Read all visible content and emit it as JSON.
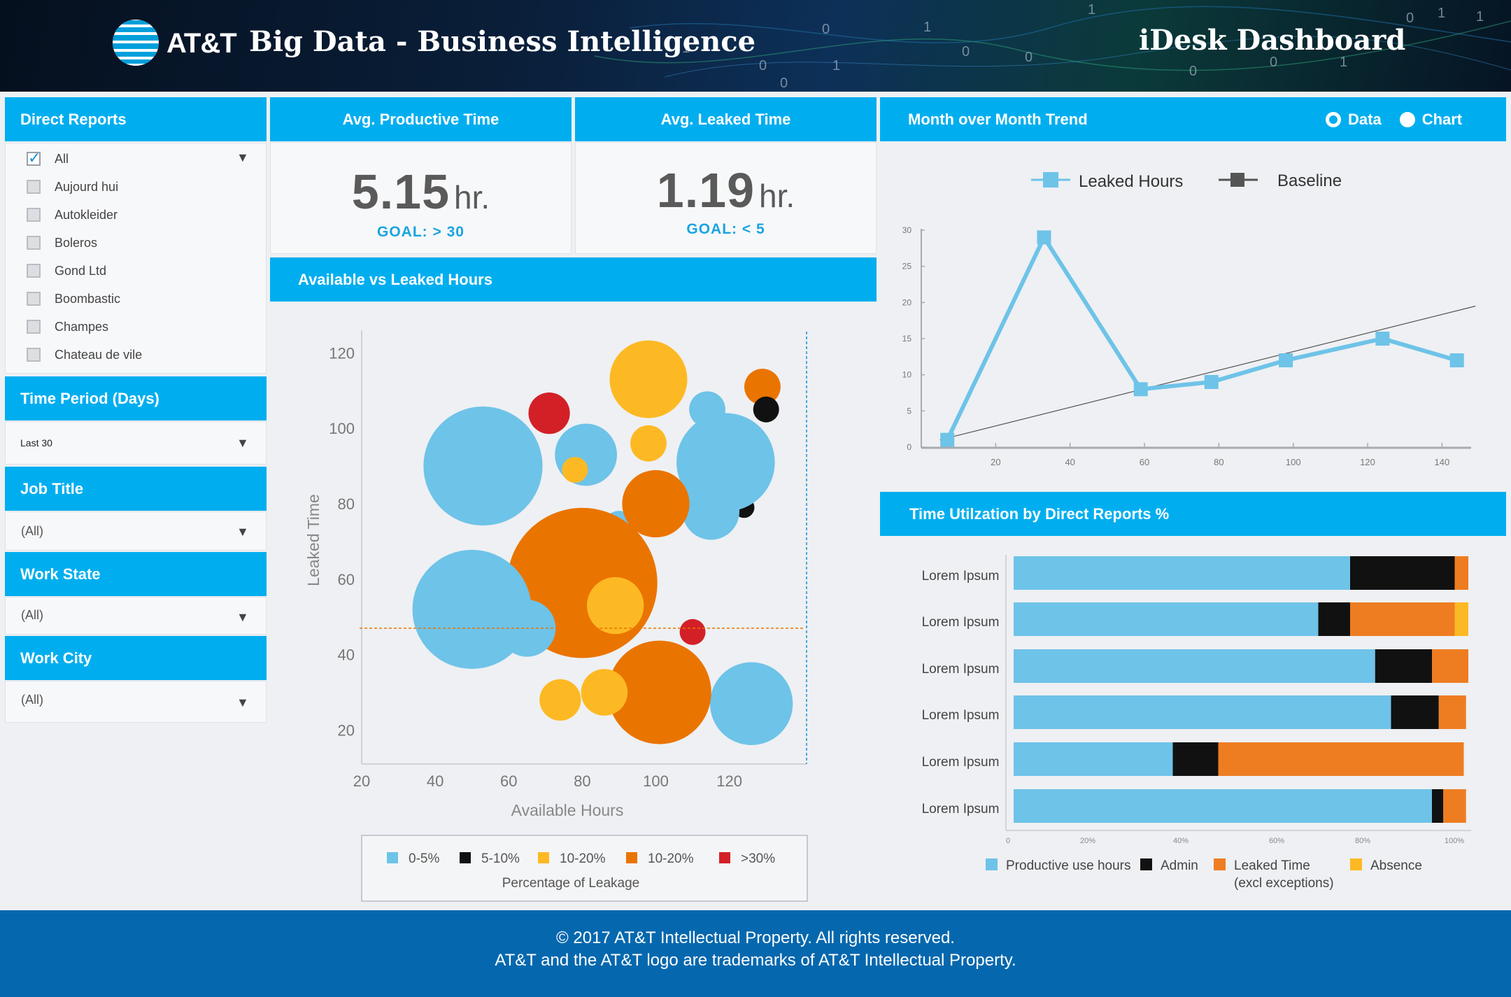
{
  "header": {
    "brand": "AT&T",
    "title": "Big Data - Business Intelligence",
    "dashboard_name": "iDesk Dashboard"
  },
  "direct_reports": {
    "title": "Direct Reports",
    "items": [
      {
        "label": "All",
        "checked": true
      },
      {
        "label": "Aujourd hui",
        "checked": false
      },
      {
        "label": "Autokleider",
        "checked": false
      },
      {
        "label": "Boleros",
        "checked": false
      },
      {
        "label": "Gond Ltd",
        "checked": false
      },
      {
        "label": "Boombastic",
        "checked": false
      },
      {
        "label": "Champes",
        "checked": false
      },
      {
        "label": "Chateau de vile",
        "checked": false
      }
    ]
  },
  "filters": {
    "time_period": {
      "title": "Time Period (Days)",
      "value": "Last 30"
    },
    "job_title": {
      "title": "Job Title",
      "value": "(All)"
    },
    "work_state": {
      "title": "Work State",
      "value": "(All)"
    },
    "work_city": {
      "title": "Work City",
      "value": "(All)"
    }
  },
  "kpis": {
    "productive": {
      "title": "Avg. Productive Time",
      "value": "5.15",
      "unit": "hr.",
      "goal": "GOAL: > 30"
    },
    "leaked": {
      "title": "Avg. Leaked Time",
      "value": "1.19",
      "unit": "hr.",
      "goal": "GOAL: < 5"
    }
  },
  "bubble_panel": {
    "title": "Available vs Leaked Hours"
  },
  "trend_panel": {
    "title": "Month over Month Trend",
    "toggle": {
      "data_label": "Data",
      "chart_label": "Chart",
      "selected": "Chart"
    }
  },
  "util_panel": {
    "title": "Time Utilzation by Direct Reports %"
  },
  "colors": {
    "accent": "#00aeef",
    "light_blue": "#6ec3e8",
    "black": "#111111",
    "yellow": "#fdb924",
    "orange": "#ea7400",
    "bar_orange": "#ee7d22",
    "red": "#d32027",
    "footer": "#0568ae"
  },
  "chart_data": [
    {
      "type": "scatter",
      "xlabel": "Available Hours",
      "ylabel": "Leaked Time",
      "x_ticks": [
        "20",
        "40",
        "60",
        "80",
        "100",
        "120"
      ],
      "y_ticks": [
        "20",
        "40",
        "60",
        "80",
        "100",
        "120"
      ],
      "xlim": [
        20,
        141
      ],
      "ylim": [
        11,
        126
      ],
      "reference_lines": {
        "horizontal_y": 47,
        "vertical_x": 141
      },
      "legend": {
        "title": "Percentage of Leakage",
        "entries": [
          {
            "label": "0-5%",
            "color": "#6ec3e8"
          },
          {
            "label": "5-10%",
            "color": "#111111"
          },
          {
            "label": "10-20%",
            "color": "#fdb924"
          },
          {
            "label": "10-20%",
            "color": "#ea7400"
          },
          {
            "label": ">30%",
            "color": "#d32027"
          }
        ]
      },
      "points": [
        {
          "x": 114,
          "y": 105,
          "size": 7,
          "cat": 0
        },
        {
          "x": 129,
          "y": 111,
          "size": 7,
          "cat": 3
        },
        {
          "x": 130,
          "y": 105,
          "size": 5,
          "cat": 1
        },
        {
          "x": 124,
          "y": 79,
          "size": 4,
          "cat": 1
        },
        {
          "x": 53,
          "y": 90,
          "size": 23,
          "cat": 0
        },
        {
          "x": 71,
          "y": 104,
          "size": 8,
          "cat": 4
        },
        {
          "x": 81,
          "y": 93,
          "size": 12,
          "cat": 0
        },
        {
          "x": 119,
          "y": 91,
          "size": 19,
          "cat": 0
        },
        {
          "x": 98,
          "y": 113,
          "size": 15,
          "cat": 2
        },
        {
          "x": 98,
          "y": 96,
          "size": 7,
          "cat": 2
        },
        {
          "x": 78,
          "y": 89,
          "size": 5,
          "cat": 2
        },
        {
          "x": 90,
          "y": 74,
          "size": 6,
          "cat": 0
        },
        {
          "x": 115,
          "y": 78,
          "size": 11,
          "cat": 0
        },
        {
          "x": 80,
          "y": 59,
          "size": 29,
          "cat": 3
        },
        {
          "x": 100,
          "y": 80,
          "size": 13,
          "cat": 3
        },
        {
          "x": 65,
          "y": 47,
          "size": 11,
          "cat": 0
        },
        {
          "x": 50,
          "y": 52,
          "size": 23,
          "cat": 0
        },
        {
          "x": 89,
          "y": 53,
          "size": 11,
          "cat": 2
        },
        {
          "x": 110,
          "y": 46,
          "size": 5,
          "cat": 4
        },
        {
          "x": 126,
          "y": 27,
          "size": 16,
          "cat": 0
        },
        {
          "x": 101,
          "y": 30,
          "size": 20,
          "cat": 3
        },
        {
          "x": 86,
          "y": 30,
          "size": 9,
          "cat": 2
        },
        {
          "x": 74,
          "y": 28,
          "size": 8,
          "cat": 2
        }
      ]
    },
    {
      "type": "line",
      "x_ticks": [
        "20",
        "40",
        "60",
        "80",
        "100",
        "120",
        "140"
      ],
      "y_ticks": [
        "0",
        "5",
        "10",
        "15",
        "20",
        "25",
        "30"
      ],
      "xlim": [
        0,
        145
      ],
      "ylim": [
        0,
        30
      ],
      "series": [
        {
          "name": "Leaked Hours",
          "color": "#6ec3e8",
          "x": [
            7,
            33,
            59,
            78,
            98,
            124,
            144
          ],
          "values": [
            1,
            29,
            8,
            9,
            12,
            15,
            12
          ]
        },
        {
          "name": "Baseline",
          "color": "#555555",
          "x": [
            5,
            149
          ],
          "values": [
            1,
            19.5
          ]
        }
      ]
    },
    {
      "type": "bar",
      "orientation": "horizontal",
      "stacked": true,
      "categories": [
        "Lorem Ipsum",
        "Lorem Ipsum",
        "Lorem Ipsum",
        "Lorem Ipsum",
        "Lorem Ipsum",
        "Lorem Ipsum"
      ],
      "x_ticks": [
        "0",
        "20%",
        "40%",
        "60%",
        "80%",
        "100%"
      ],
      "xlim": [
        0,
        100
      ],
      "series": [
        {
          "name": "Productive use hours",
          "color": "#6ec3e8",
          "values": [
            74,
            67,
            79.5,
            83,
            35,
            92
          ]
        },
        {
          "name": "Admin",
          "color": "#111111",
          "values": [
            23,
            7,
            12.5,
            10.5,
            10,
            2.5
          ]
        },
        {
          "name": "Leaked Time (excl exceptions)",
          "color": "#ee7d22",
          "values": [
            3,
            23,
            8,
            6,
            54,
            5
          ]
        },
        {
          "name": "Absence",
          "color": "#fdb924",
          "values": [
            0,
            3,
            0,
            0,
            0,
            0
          ]
        }
      ],
      "legend_lines": [
        [
          "Productive use hours"
        ],
        [
          "Admin"
        ],
        [
          "Leaked Time",
          "(excl exceptions)"
        ],
        [
          "Absence"
        ]
      ]
    }
  ],
  "footer": {
    "line1": "© 2017 AT&T Intellectual Property. All rights reserved.",
    "line2": "AT&T and the AT&T logo are trademarks of AT&T Intellectual Property."
  }
}
